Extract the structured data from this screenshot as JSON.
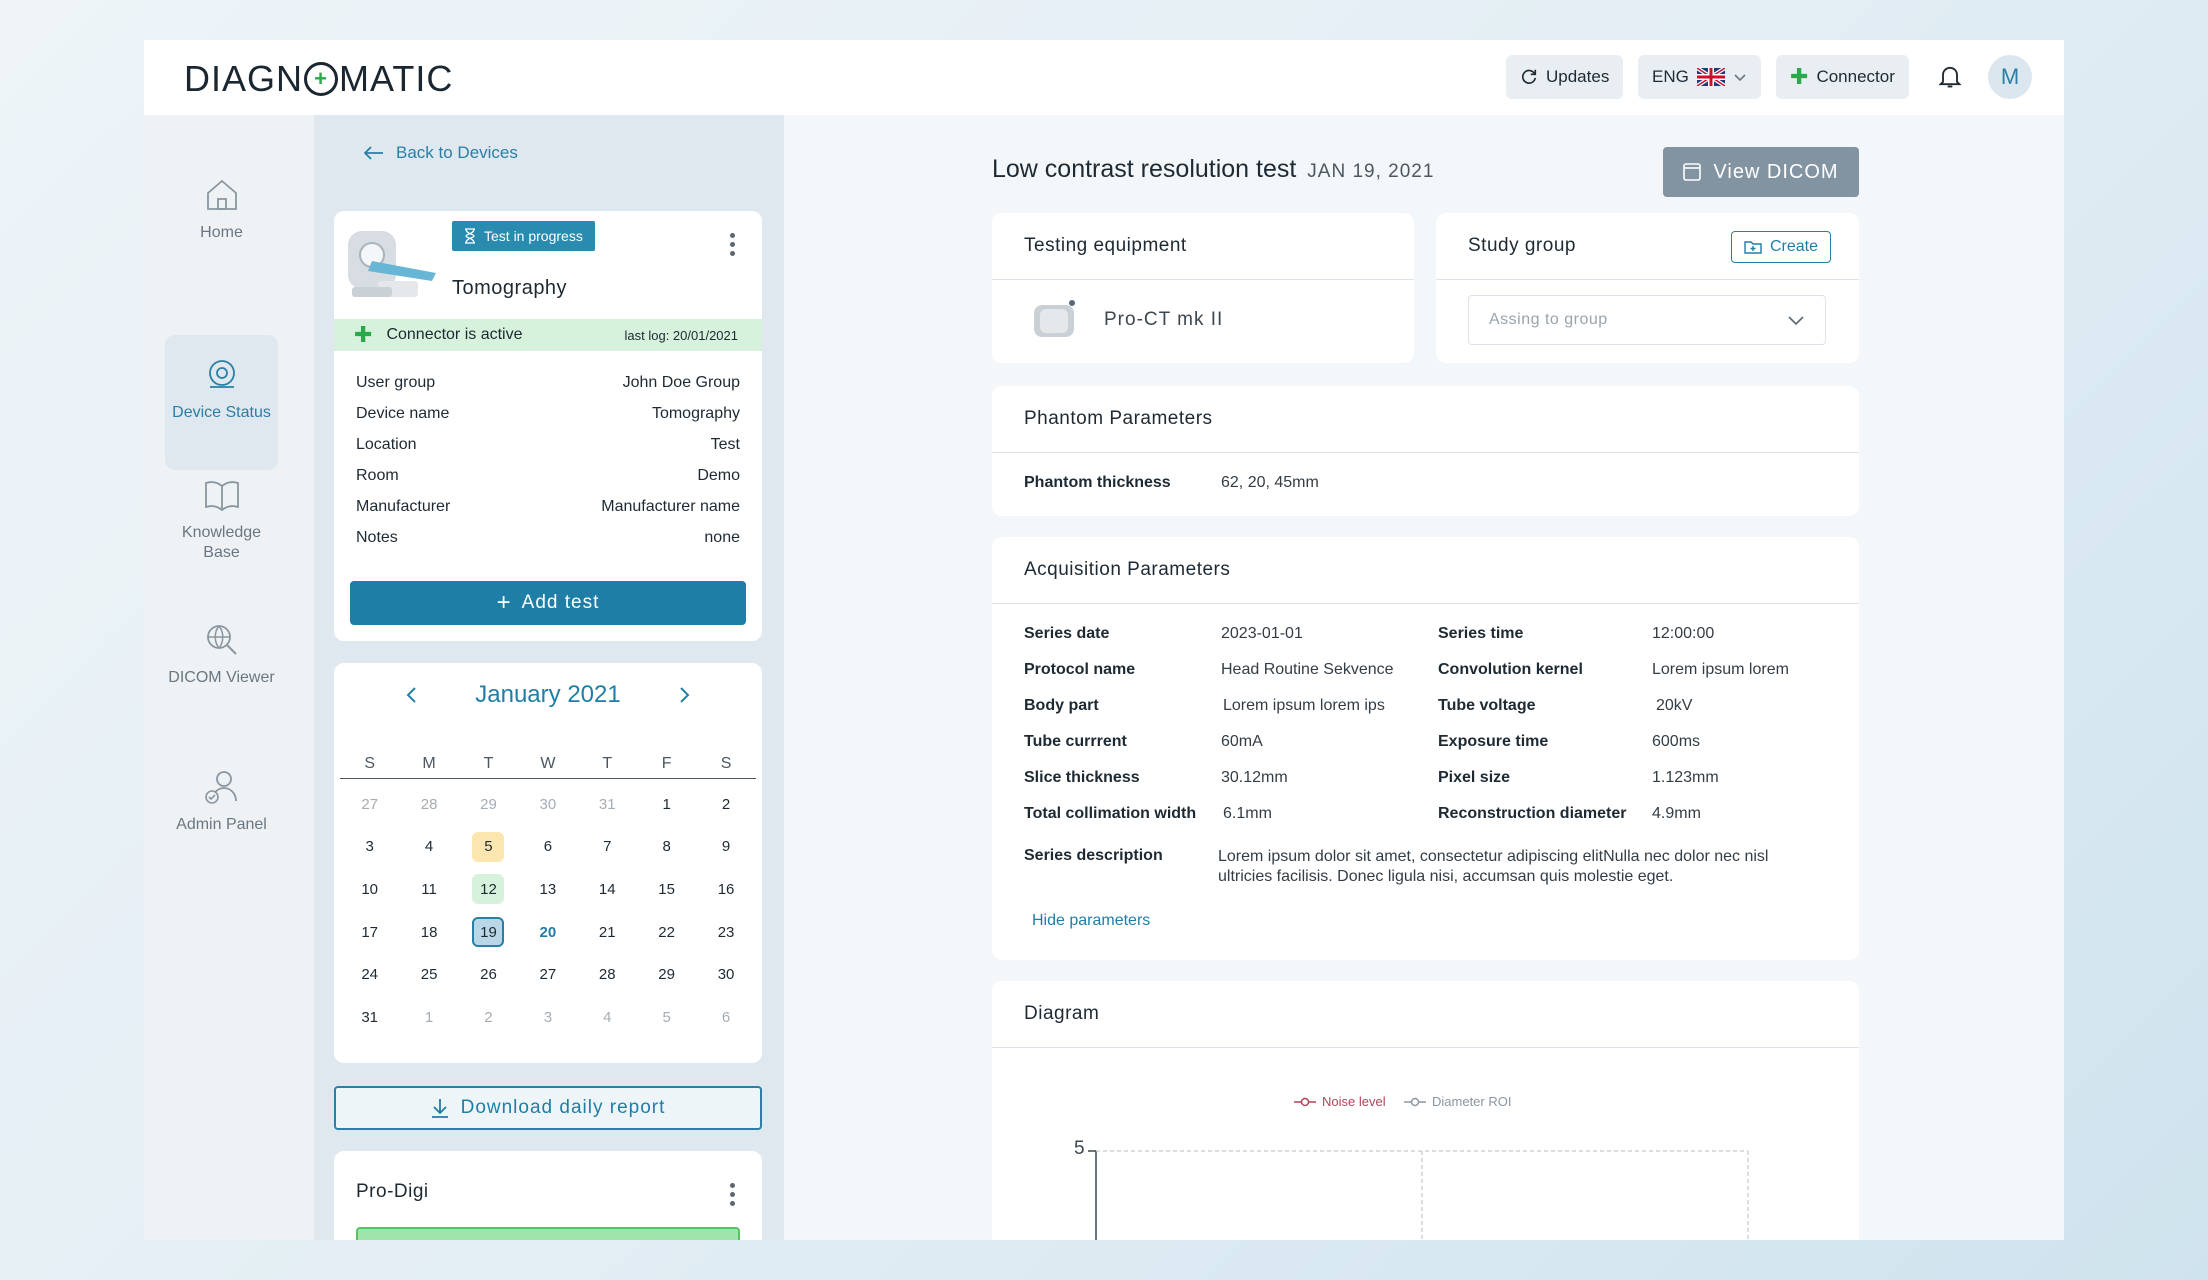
{
  "header": {
    "logo": "DIAGN",
    "logo_tail": "MATIC",
    "logo_cross": "+",
    "updates_label": "Updates",
    "language_label": "ENG",
    "connector_label": "Connector",
    "avatar_initial": "M"
  },
  "sidebar": {
    "items": [
      {
        "label": "Home"
      },
      {
        "label": "Device Status"
      },
      {
        "label": "Knowledge Base"
      },
      {
        "label": "DICOM Viewer"
      },
      {
        "label": "Admin Panel"
      }
    ]
  },
  "device_panel": {
    "back_label": "Back to Devices",
    "badge": "Test in progress",
    "device_title": "Tomography",
    "connector_status": "Connector is active",
    "last_log": "last log: 20/01/2021",
    "details": [
      {
        "key": "User group",
        "value": "John Doe Group"
      },
      {
        "key": "Device name",
        "value": "Tomography"
      },
      {
        "key": "Location",
        "value": "Test"
      },
      {
        "key": "Room",
        "value": "Demo"
      },
      {
        "key": "Manufacturer",
        "value": "Manufacturer name"
      },
      {
        "key": "Notes",
        "value": "none"
      }
    ],
    "add_test_label": "Add test",
    "download_label": "Download daily report",
    "second_device_title": "Pro-Digi"
  },
  "calendar": {
    "month_label": "January 2021",
    "weekdays": [
      "S",
      "M",
      "T",
      "W",
      "T",
      "F",
      "S"
    ],
    "weeks": [
      [
        "27",
        "28",
        "29",
        "30",
        "31",
        "1",
        "2"
      ],
      [
        "3",
        "4",
        "5",
        "6",
        "7",
        "8",
        "9"
      ],
      [
        "10",
        "11",
        "12",
        "13",
        "14",
        "15",
        "16"
      ],
      [
        "17",
        "18",
        "19",
        "20",
        "21",
        "22",
        "23"
      ],
      [
        "24",
        "25",
        "26",
        "27",
        "28",
        "29",
        "30"
      ],
      [
        "31",
        "1",
        "2",
        "3",
        "4",
        "5",
        "6"
      ]
    ]
  },
  "main": {
    "title": "Low contrast resolution test",
    "date": "JAN 19, 2021",
    "view_dicom_label": "View DICOM",
    "testing_equipment_title": "Testing equipment",
    "equipment_name": "Pro-CT mk II",
    "study_group_title": "Study group",
    "create_label": "Create",
    "assign_placeholder": "Assing to group",
    "phantom_title": "Phantom Parameters",
    "phantom_thickness_label": "Phantom thickness",
    "phantom_thickness_value": "62, 20, 45mm",
    "acquisition_title": "Acquisition Parameters",
    "acquisition_left": [
      {
        "label": "Series date",
        "value": "2023-01-01"
      },
      {
        "label": "Protocol name",
        "value": "Head Routine Sekvence"
      },
      {
        "label": "Body part",
        "value": "Lorem ipsum lorem ips"
      },
      {
        "label": "Tube currrent",
        "value": "60mA"
      },
      {
        "label": "Slice thickness",
        "value": "30.12mm"
      },
      {
        "label": "Total collimation width",
        "value": "6.1mm"
      }
    ],
    "acquisition_right": [
      {
        "label": "Series time",
        "value": "12:00:00"
      },
      {
        "label": "Convolution kernel",
        "value": "Lorem ipsum lorem"
      },
      {
        "label": "Tube voltage",
        "value": "20kV"
      },
      {
        "label": "Exposure time",
        "value": "600ms"
      },
      {
        "label": "Pixel size",
        "value": "1.123mm"
      },
      {
        "label": "Reconstruction diameter",
        "value": "4.9mm"
      }
    ],
    "series_description_label": "Series description",
    "series_description_value": "Lorem ipsum dolor sit amet, consectetur adipiscing elitNulla nec dolor nec nisl ultricies facilisis. Donec ligula nisi, accumsan quis molestie eget.",
    "hide_parameters_label": "Hide parameters",
    "diagram_title": "Diagram"
  },
  "chart_data": {
    "type": "line",
    "series": [
      {
        "name": "Noise level",
        "values": []
      },
      {
        "name": "Diameter ROI",
        "values": []
      }
    ],
    "ytick_top": "5",
    "legend_position": "top-center",
    "colors": {
      "noise": "#b0455a",
      "diameter": "#8a96a0"
    }
  },
  "colors": {
    "accent": "#1f7ea6",
    "badge": "#2a8bb0",
    "connector_green": "#2aa94a",
    "view_dicom": "#8293a2"
  }
}
